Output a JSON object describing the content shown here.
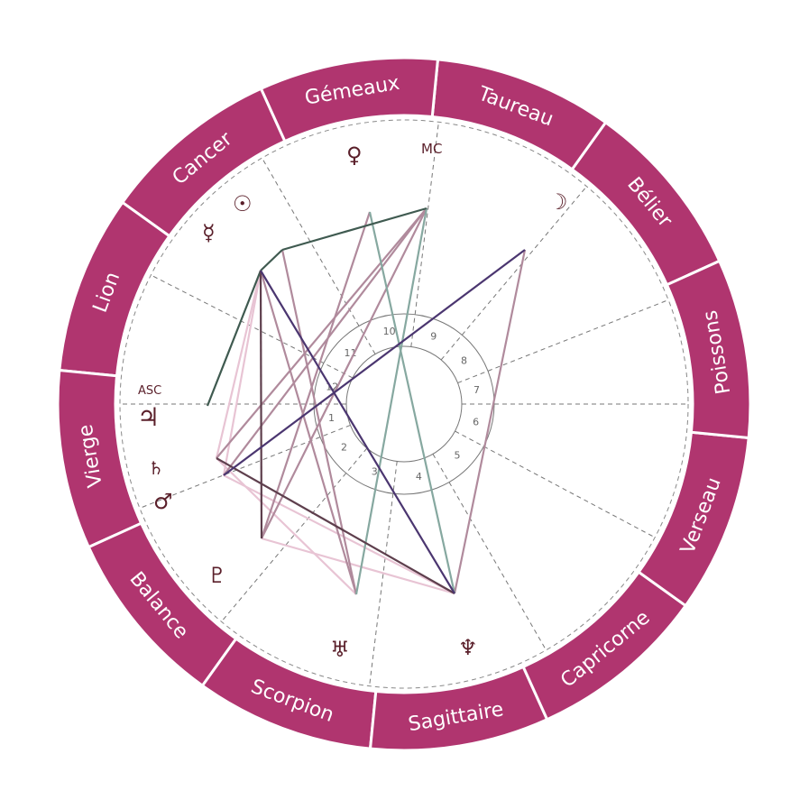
{
  "colors": {
    "ring": "#b0356f",
    "glyph": "#5a1f2a",
    "aspect_dark_green": "#3f5a50",
    "aspect_teal": "#86a8a0",
    "aspect_mauve": "#b08a9c",
    "aspect_purple": "#4b3670",
    "aspect_plum": "#5e3f4d",
    "aspect_pink": "#e8c4d4"
  },
  "signs": [
    "Bélier",
    "Taureau",
    "Gémeaux",
    "Cancer",
    "Lion",
    "Vierge",
    "Balance",
    "Scorpion",
    "Sagittaire",
    "Capricorne",
    "Verseau",
    "Poissons"
  ],
  "houses": [
    "1",
    "2",
    "3",
    "4",
    "5",
    "6",
    "7",
    "8",
    "9",
    "10",
    "11",
    "12"
  ],
  "axes": {
    "asc": "ASC",
    "mc": "MC"
  },
  "planets": [
    {
      "icon": "sun-icon",
      "glyph": "☉"
    },
    {
      "icon": "moon-icon",
      "glyph": "☽"
    },
    {
      "icon": "mercury-icon",
      "glyph": "☿"
    },
    {
      "icon": "venus-icon",
      "glyph": "♀"
    },
    {
      "icon": "mars-icon",
      "glyph": "♂"
    },
    {
      "icon": "jupiter-icon",
      "glyph": "♃"
    },
    {
      "icon": "saturn-icon",
      "glyph": "♄"
    },
    {
      "icon": "uranus-icon",
      "glyph": "♅"
    },
    {
      "icon": "neptune-icon",
      "glyph": "♆"
    },
    {
      "icon": "pluto-icon",
      "glyph": "♇"
    }
  ]
}
